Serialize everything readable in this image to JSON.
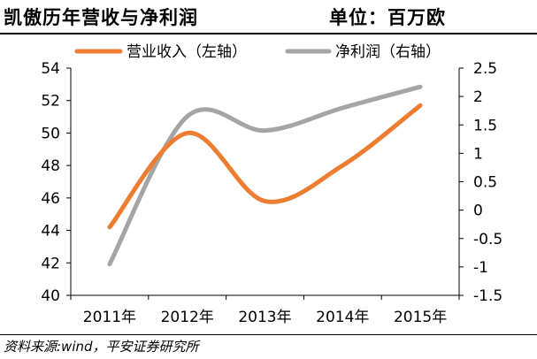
{
  "header": {
    "title": "凯傲历年营收与净利润",
    "unit": "单位：百万欧"
  },
  "footer": {
    "source": "资料来源:wind，平安证券研究所"
  },
  "colors": {
    "revenue": "#ED7D31",
    "net_profit": "#A5A5A5",
    "axis": "#000000"
  },
  "chart_data": {
    "type": "line",
    "categories": [
      "2011年",
      "2012年",
      "2013年",
      "2014年",
      "2015年"
    ],
    "series": [
      {
        "name": "营业收入（左轴）",
        "axis": "left",
        "values": [
          44.2,
          50.0,
          45.8,
          48.0,
          51.7
        ]
      },
      {
        "name": "净利润（右轴）",
        "axis": "right",
        "values": [
          -0.95,
          1.65,
          1.4,
          1.8,
          2.17
        ]
      }
    ],
    "y_left": {
      "min": 40,
      "max": 54,
      "ticks": [
        "40",
        "42",
        "44",
        "46",
        "48",
        "50",
        "52",
        "54"
      ]
    },
    "y_right": {
      "min": -1.5,
      "max": 2.5,
      "ticks": [
        "-1.5",
        "-1",
        "-0.5",
        "0",
        "0.5",
        "1",
        "1.5",
        "2",
        "2.5"
      ]
    },
    "legend_position": "top",
    "grid": false,
    "smooth": true
  }
}
